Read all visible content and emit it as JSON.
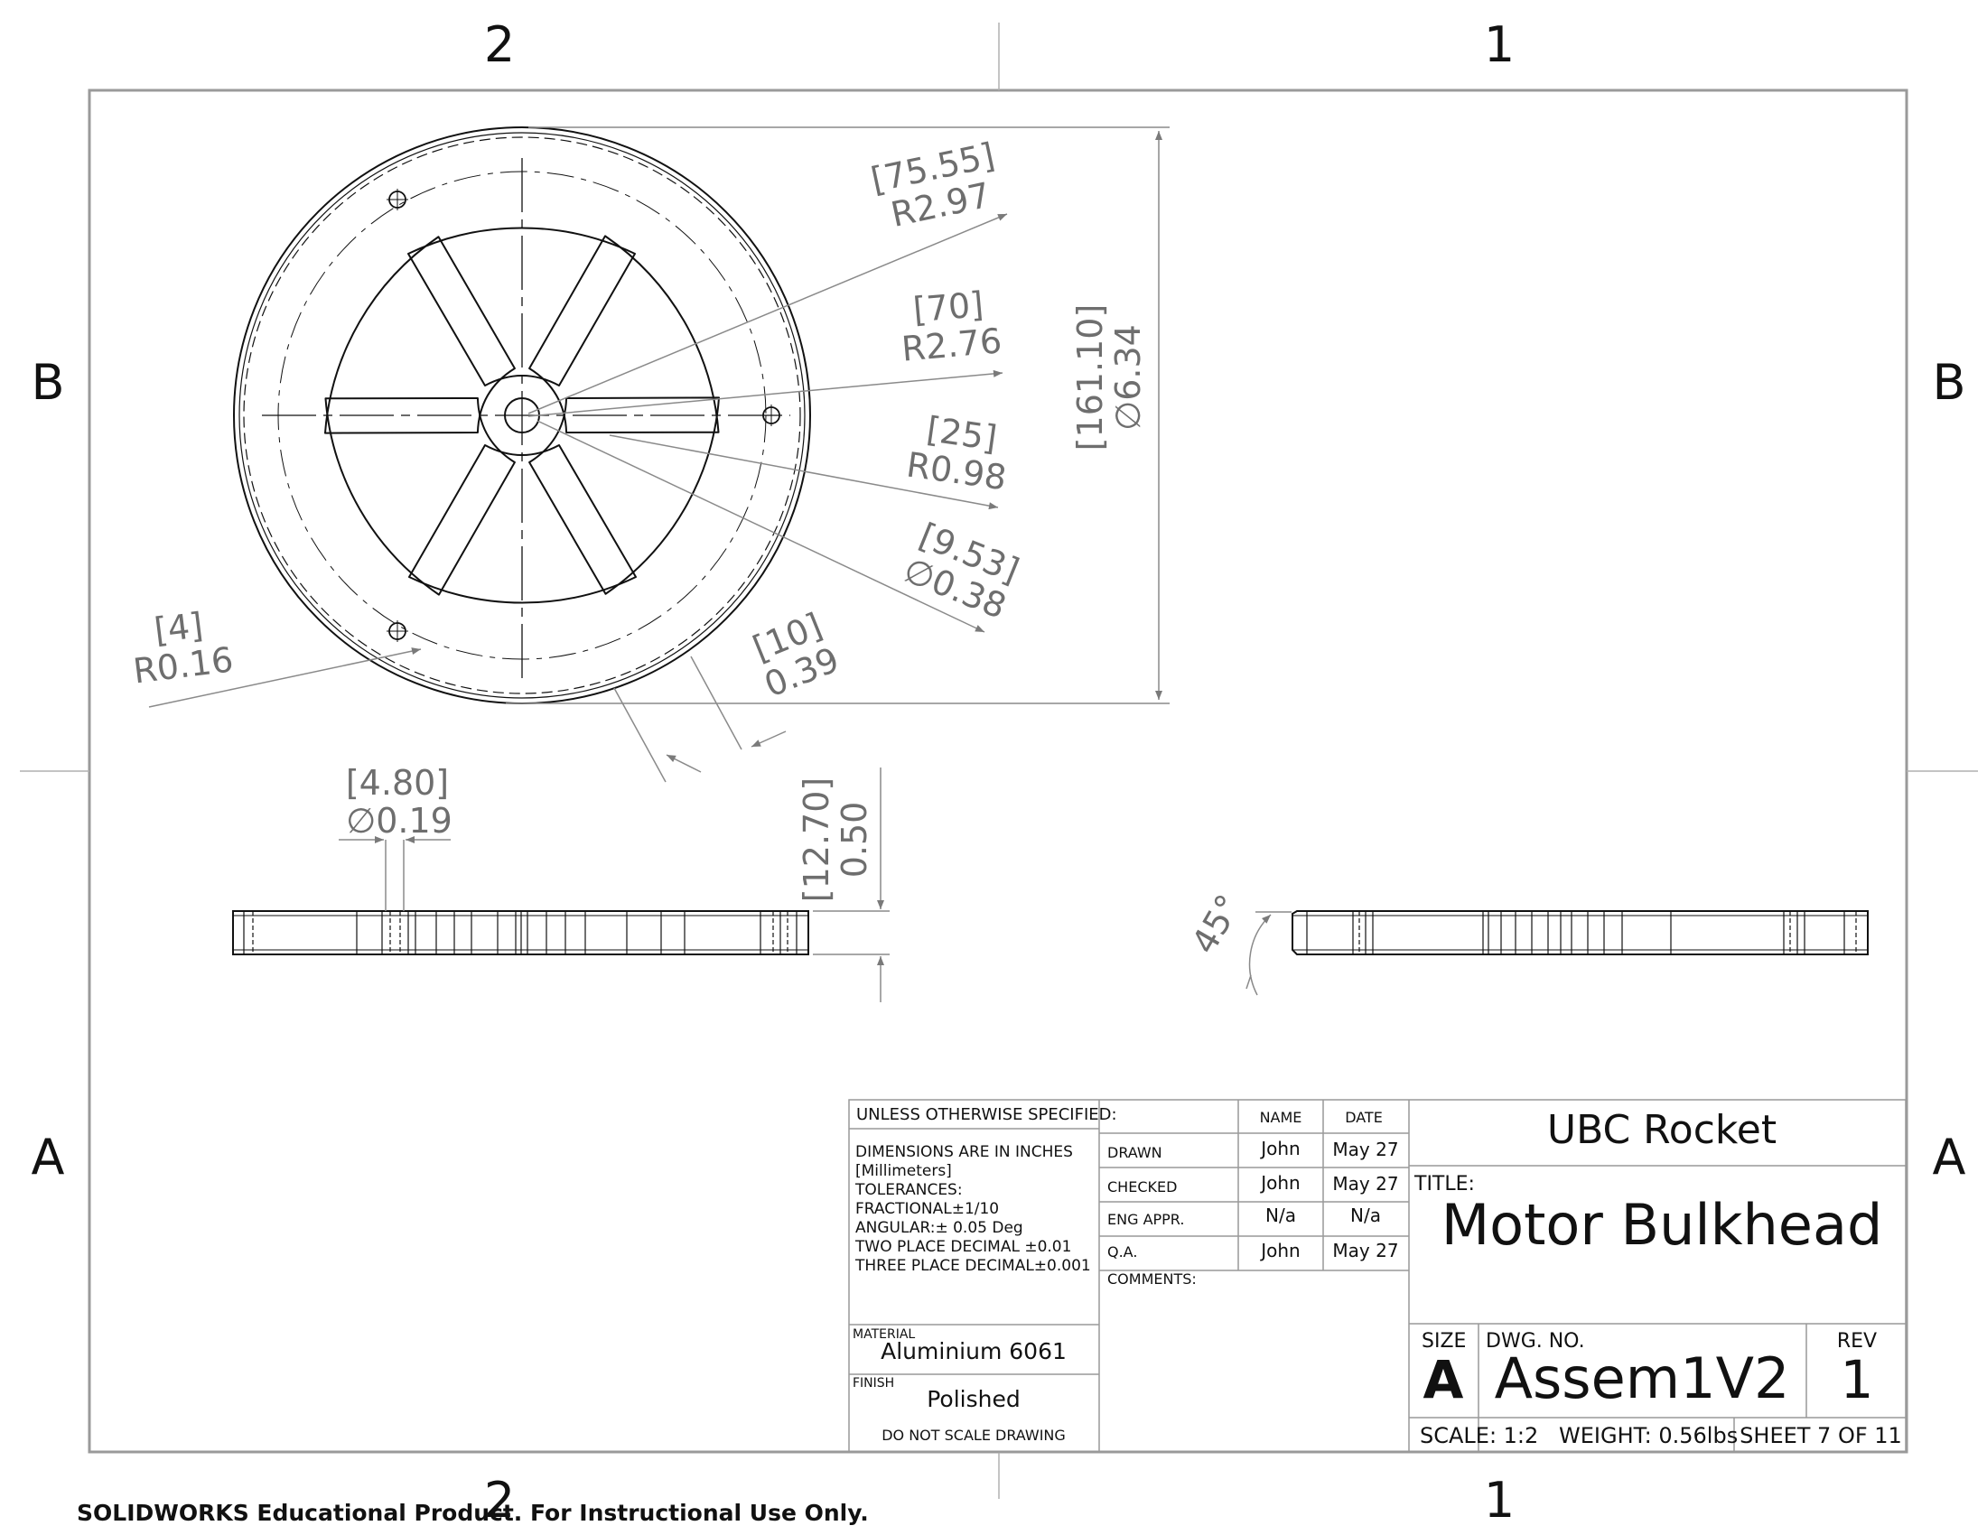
{
  "zones": {
    "top": [
      "2",
      "1"
    ],
    "bottom": [
      "2",
      "1"
    ],
    "left": [
      "B",
      "A"
    ],
    "right": [
      "B",
      "A"
    ]
  },
  "dimensions": {
    "outer_radius_mm": "[75.55",
    "outer_radius_mm_close": "]",
    "outer_radius_in": "R2.97",
    "inner_radius_mm": "[70]",
    "inner_radius_in": "R2.76",
    "fillet_radius_mm": "[25]",
    "fillet_radius_in": "R0.98",
    "center_hole_mm": "[9.53]",
    "center_hole_in": "∅0.38",
    "rim_width_mm": "[10]",
    "rim_width_in": "0.39",
    "small_radius_mm": "[4]",
    "small_radius_in": "R0.16",
    "overall_dia_mm": "[161.10]",
    "overall_dia_in": "∅6.34",
    "bolt_hole_mm": "[4.80]",
    "bolt_hole_in": "∅0.19",
    "thickness_mm": "[12.70]",
    "thickness_in": "0.50",
    "chamfer_angle": "45°"
  },
  "title_block": {
    "unless_specified": "UNLESS OTHERWISE SPECIFIED:",
    "notes": [
      "DIMENSIONS ARE IN INCHES",
      "[Millimeters]",
      "TOLERANCES:",
      "FRACTIONAL±1/10",
      "ANGULAR:± 0.05 Deg",
      "TWO PLACE DECIMAL  ±0.01",
      "THREE PLACE DECIMAL±0.001"
    ],
    "material_label": "MATERIAL",
    "material": "Aluminium 6061",
    "finish_label": "FINISH",
    "finish": "Polished",
    "do_not_scale": "DO NOT SCALE DRAWING",
    "name_header": "NAME",
    "date_header": "DATE",
    "rows": [
      {
        "role": "DRAWN",
        "name": "John",
        "date": "May 27"
      },
      {
        "role": "CHECKED",
        "name": "John",
        "date": "May 27"
      },
      {
        "role": "ENG APPR.",
        "name": "N/a",
        "date": "N/a"
      },
      {
        "role": "Q.A.",
        "name": "John",
        "date": "May 27"
      }
    ],
    "comments_label": "COMMENTS:",
    "company": "UBC Rocket",
    "title_label": "TITLE:",
    "title": "Motor Bulkhead",
    "size_label": "SIZE",
    "size": "A",
    "dwg_no_label": "DWG.  NO.",
    "dwg_no": "Assem1V2",
    "rev_label": "REV",
    "rev": "1",
    "scale": "SCALE: 1:2",
    "weight": "WEIGHT: 0.56lbs",
    "sheet": "SHEET 7 OF 11"
  },
  "watermark": "SOLIDWORKS Educational Product. For Instructional Use Only."
}
